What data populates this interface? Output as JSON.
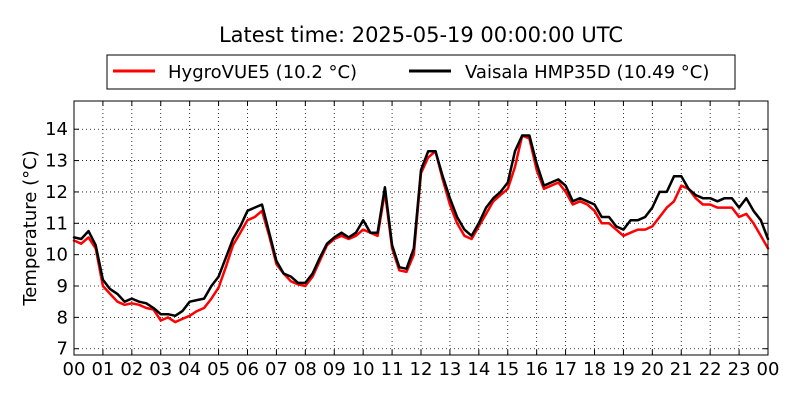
{
  "chart_data": {
    "type": "line",
    "title": "Latest time: 2025-05-19 00:00:00 UTC",
    "xlabel": "",
    "ylabel": "Temperature (°C)",
    "x_ticks": [
      "00",
      "01",
      "02",
      "03",
      "04",
      "05",
      "06",
      "07",
      "08",
      "09",
      "10",
      "11",
      "12",
      "13",
      "14",
      "15",
      "16",
      "17",
      "18",
      "19",
      "20",
      "21",
      "22",
      "23",
      "00"
    ],
    "xlim": [
      0,
      24
    ],
    "ylim": [
      6.8,
      14.9
    ],
    "y_ticks": [
      7,
      8,
      9,
      10,
      11,
      12,
      13,
      14
    ],
    "grid": true,
    "legend_position": "top-center",
    "x": [
      0,
      0.25,
      0.5,
      0.75,
      1,
      1.25,
      1.5,
      1.75,
      2,
      2.25,
      2.5,
      2.75,
      3,
      3.25,
      3.5,
      3.75,
      4,
      4.25,
      4.5,
      4.75,
      5,
      5.25,
      5.5,
      5.75,
      6,
      6.25,
      6.5,
      6.75,
      7,
      7.25,
      7.5,
      7.75,
      8,
      8.25,
      8.5,
      8.75,
      9,
      9.25,
      9.5,
      9.75,
      10,
      10.25,
      10.5,
      10.75,
      11,
      11.25,
      11.5,
      11.75,
      12,
      12.25,
      12.5,
      12.75,
      13,
      13.25,
      13.5,
      13.75,
      14,
      14.25,
      14.5,
      14.75,
      15,
      15.25,
      15.5,
      15.75,
      16,
      16.25,
      16.5,
      16.75,
      17,
      17.25,
      17.5,
      17.75,
      18,
      18.25,
      18.5,
      18.75,
      19,
      19.25,
      19.5,
      19.75,
      20,
      20.25,
      20.5,
      20.75,
      21,
      21.25,
      21.5,
      21.75,
      22,
      22.25,
      22.5,
      22.75,
      23,
      23.25,
      23.5,
      23.75,
      24
    ],
    "series": [
      {
        "name": "HygroVUE5 (10.2 °C)",
        "color": "#ff0000",
        "values": [
          10.45,
          10.35,
          10.55,
          10.2,
          9.0,
          8.75,
          8.5,
          8.4,
          8.45,
          8.4,
          8.3,
          8.25,
          7.9,
          8.0,
          7.85,
          7.95,
          8.05,
          8.2,
          8.3,
          8.6,
          8.95,
          9.6,
          10.3,
          10.7,
          11.1,
          11.2,
          11.4,
          10.6,
          9.7,
          9.4,
          9.15,
          9.05,
          9.0,
          9.3,
          9.8,
          10.3,
          10.5,
          10.6,
          10.5,
          10.6,
          10.8,
          10.7,
          10.6,
          12.0,
          10.2,
          9.5,
          9.45,
          10.0,
          12.6,
          13.1,
          13.3,
          12.4,
          11.6,
          11.0,
          10.6,
          10.5,
          10.9,
          11.3,
          11.7,
          11.9,
          12.1,
          12.8,
          13.8,
          13.7,
          12.7,
          12.1,
          12.2,
          12.3,
          12.0,
          11.6,
          11.7,
          11.6,
          11.4,
          11.0,
          11.0,
          10.8,
          10.6,
          10.7,
          10.8,
          10.8,
          10.9,
          11.2,
          11.5,
          11.7,
          12.2,
          12.1,
          11.8,
          11.6,
          11.6,
          11.5,
          11.5,
          11.5,
          11.2,
          11.3,
          11.0,
          10.6,
          10.2
        ]
      },
      {
        "name": "Vaisala HMP35D (10.49 °C)",
        "color": "#000000",
        "values": [
          10.55,
          10.5,
          10.75,
          10.3,
          9.2,
          8.9,
          8.75,
          8.5,
          8.6,
          8.5,
          8.45,
          8.3,
          8.1,
          8.1,
          8.05,
          8.2,
          8.5,
          8.55,
          8.6,
          9.0,
          9.3,
          9.9,
          10.5,
          10.9,
          11.4,
          11.5,
          11.6,
          10.7,
          9.8,
          9.4,
          9.3,
          9.1,
          9.1,
          9.4,
          9.9,
          10.35,
          10.55,
          10.7,
          10.55,
          10.7,
          11.1,
          10.7,
          10.7,
          12.15,
          10.3,
          9.6,
          9.55,
          10.2,
          12.7,
          13.3,
          13.3,
          12.5,
          11.8,
          11.2,
          10.8,
          10.6,
          11.0,
          11.5,
          11.8,
          12.0,
          12.3,
          13.3,
          13.8,
          13.8,
          12.9,
          12.2,
          12.3,
          12.4,
          12.2,
          11.7,
          11.8,
          11.7,
          11.6,
          11.2,
          11.2,
          10.9,
          10.8,
          11.1,
          11.1,
          11.2,
          11.5,
          12.0,
          12.0,
          12.5,
          12.5,
          12.1,
          11.9,
          11.8,
          11.8,
          11.7,
          11.8,
          11.8,
          11.5,
          11.8,
          11.4,
          11.1,
          10.5
        ]
      }
    ]
  }
}
